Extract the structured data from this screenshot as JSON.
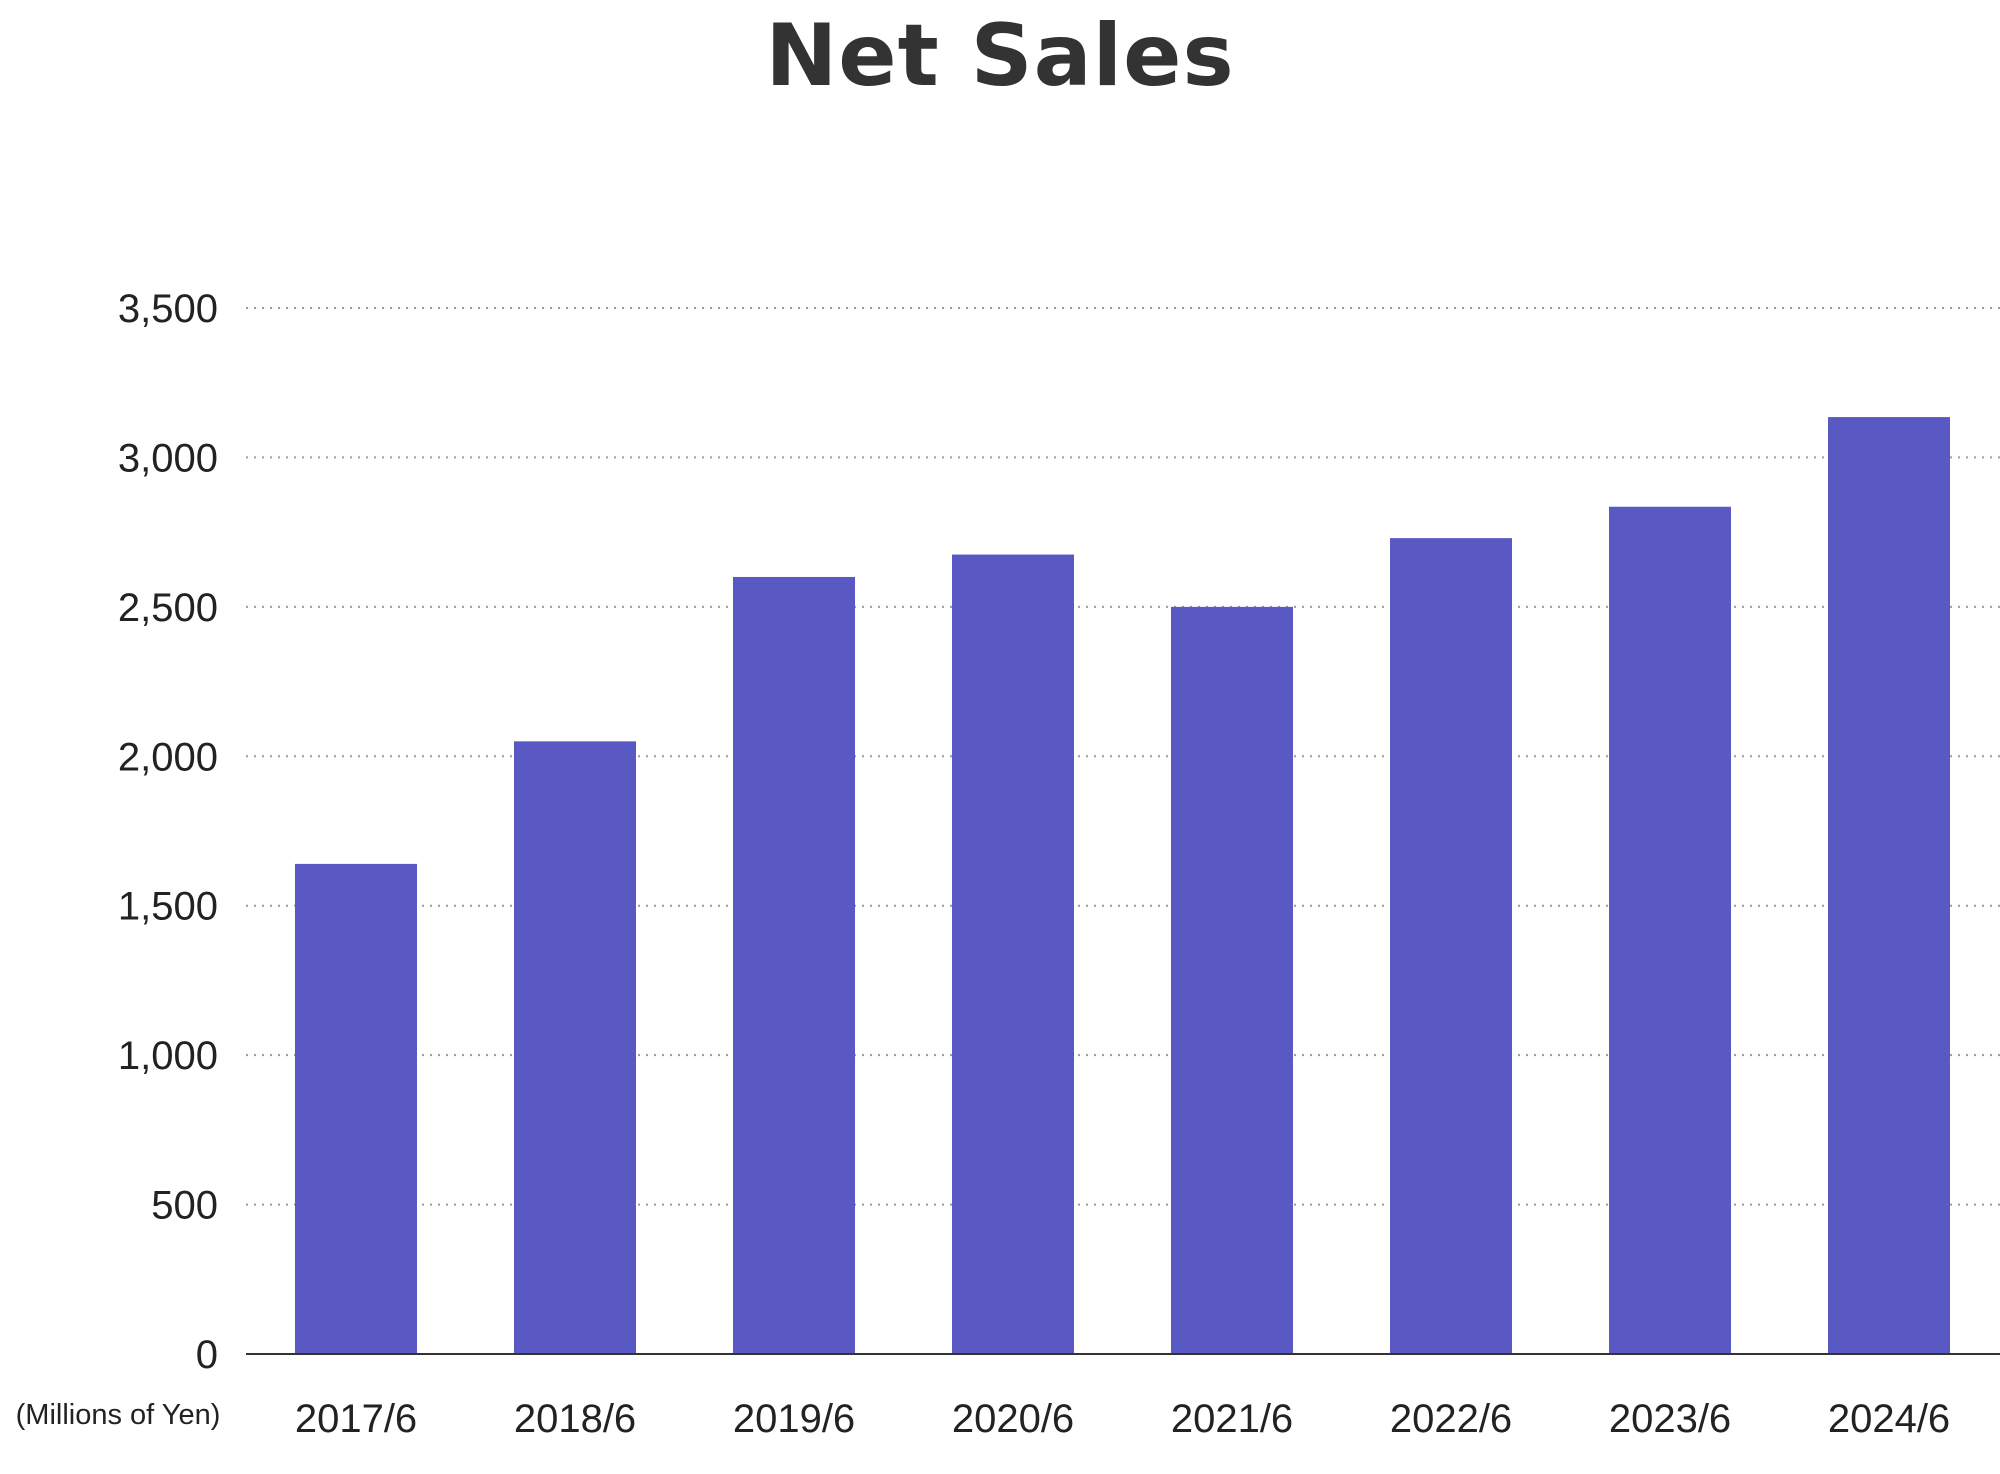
{
  "chart_data": {
    "type": "bar",
    "title": "Net Sales",
    "ylabel": "(Millions of Yen)",
    "xlabel": "",
    "categories": [
      "2017/6",
      "2018/6",
      "2019/6",
      "2020/6",
      "2021/6",
      "2022/6",
      "2023/6",
      "2024/6"
    ],
    "values": [
      1640,
      2050,
      2600,
      2675,
      2500,
      2730,
      2835,
      3135
    ],
    "ylim": [
      0,
      3500
    ],
    "yticks": [
      0,
      500,
      1000,
      1500,
      2000,
      2500,
      3000,
      3500
    ],
    "ytick_labels": [
      "0",
      "500",
      "1,000",
      "1,500",
      "2,000",
      "2,500",
      "3,000",
      "3,500"
    ],
    "grid": true,
    "bar_color": "#5a58c3",
    "axis_color": "#333333",
    "grid_color": "#9a9a9a"
  }
}
